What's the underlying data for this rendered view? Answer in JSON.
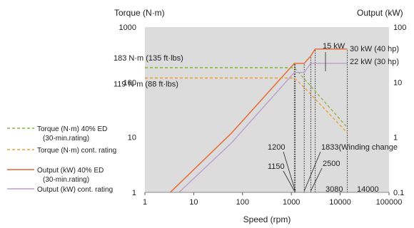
{
  "chart_data": {
    "type": "line",
    "x_scale": "log",
    "y_scale": "log",
    "y2_scale": "log",
    "xlabel": "Speed (rpm)",
    "ylabel": "Torque (N·m)",
    "y2label": "Output (kW)",
    "xlim": [
      1,
      100000
    ],
    "ylim": [
      1,
      1000
    ],
    "y2lim": [
      0.1,
      100
    ],
    "x_ticks": [
      "1",
      "10",
      "100",
      "1000",
      "10000",
      "100000"
    ],
    "y_ticks": [
      "1",
      "10",
      "100",
      "1000"
    ],
    "y2_ticks": [
      "0.1",
      "1",
      "10",
      "100"
    ],
    "grid": false,
    "plot_background": "#dcdcdc",
    "legend_position": "left",
    "series": [
      {
        "name": "Torque (N·m) 40% ED",
        "name_line2": "(30-min.rating)",
        "axis": "torque",
        "color": "#8db43c",
        "dash": "dashed",
        "x": [
          1,
          1150,
          1833,
          14000
        ],
        "y": [
          183,
          183,
          115,
          15
        ]
      },
      {
        "name": "Torque (N·m) cont. rating",
        "axis": "torque",
        "color": "#f0a030",
        "dash": "dashed",
        "x": [
          1,
          1150,
          1833,
          14000
        ],
        "y": [
          119,
          119,
          80,
          12
        ]
      },
      {
        "name": "Output (kW) 40% ED",
        "name_line2": "(30-min.rating)",
        "axis": "output",
        "color": "#e8642a",
        "dash": "solid",
        "x": [
          3.3,
          60,
          1150,
          1200,
          1833,
          2500,
          3080,
          14000
        ],
        "y": [
          0.1,
          1.2,
          22,
          22,
          22,
          30,
          40,
          40
        ]
      },
      {
        "name": "Output (kW) cont. rating",
        "axis": "output",
        "color": "#b8a0cc",
        "dash": "solid",
        "x": [
          5,
          60,
          1150,
          1200,
          1833,
          2500,
          14000
        ],
        "y": [
          0.1,
          0.8,
          15,
          15,
          15,
          22,
          22
        ]
      }
    ],
    "annotations": [
      {
        "text": "183 N·m (135 ft·lbs)",
        "value": 183,
        "unit": "N·m"
      },
      {
        "text": "119 N·m (88 ft·lbs)",
        "value": 119,
        "unit": "N·m"
      },
      {
        "text": "15 kW",
        "value": 15,
        "unit": "kW"
      },
      {
        "text": "30 kW (40 hp)",
        "value": 30,
        "unit": "kW"
      },
      {
        "text": "22 kW (30 hp)",
        "value": 22,
        "unit": "kW"
      },
      {
        "text": "1200",
        "value": 1200,
        "unit": "rpm"
      },
      {
        "text": "1150",
        "value": 1150,
        "unit": "rpm"
      },
      {
        "text": "1833(Winding change",
        "value": 1833,
        "unit": "rpm"
      },
      {
        "text": "2500",
        "value": 2500,
        "unit": "rpm"
      },
      {
        "text": "3080",
        "value": 3080,
        "unit": "rpm"
      },
      {
        "text": "14000",
        "value": 14000,
        "unit": "rpm"
      }
    ]
  }
}
